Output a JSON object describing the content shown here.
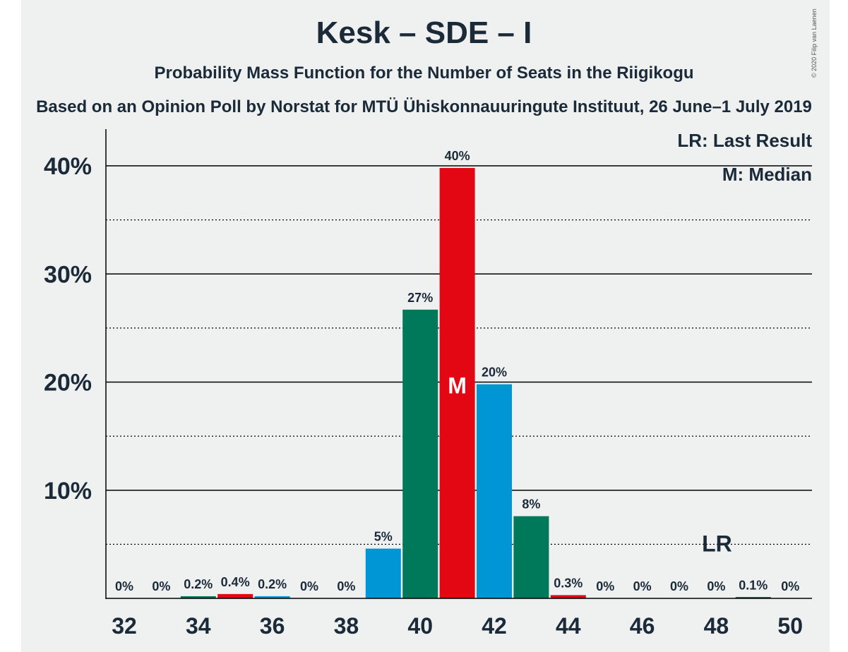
{
  "chart_data": {
    "type": "bar",
    "title": "Kesk – SDE – I",
    "subtitle": "Probability Mass Function for the Number of Seats in the Riigikogu",
    "subtitle2": "Based on an Opinion Poll by Norstat for MTÜ Ühiskonnauuringute Instituut, 26 June–1 July 2019",
    "copyright": "© 2020 Filip van Laenen",
    "legend": [
      "LR: Last Result",
      "M: Median"
    ],
    "x": [
      32,
      33,
      34,
      35,
      36,
      37,
      38,
      39,
      40,
      41,
      42,
      43,
      44,
      45,
      46,
      47,
      48,
      49,
      50
    ],
    "values": [
      0,
      0,
      0.2,
      0.4,
      0.2,
      0,
      0,
      4.6,
      26.7,
      39.8,
      19.8,
      7.6,
      0.3,
      0,
      0,
      0,
      0,
      0.1,
      0
    ],
    "labels": [
      "0%",
      "0%",
      "0.2%",
      "0.4%",
      "0.2%",
      "0%",
      "0%",
      "5%",
      "27%",
      "40%",
      "20%",
      "8%",
      "0.3%",
      "0%",
      "0%",
      "0%",
      "0%",
      "0.1%",
      "0%"
    ],
    "colors": [
      "#e30613",
      "#0096d6",
      "#00795a"
    ],
    "x_ticks": [
      32,
      34,
      36,
      38,
      40,
      42,
      44,
      46,
      48,
      50
    ],
    "y_ticks": [
      10,
      20,
      30,
      40
    ],
    "y_tick_labels": [
      "10%",
      "20%",
      "30%",
      "40%"
    ],
    "ylim": [
      0,
      43
    ],
    "median": 41,
    "median_label": "M",
    "last_result": 48,
    "last_result_label": "LR",
    "grid": true
  }
}
